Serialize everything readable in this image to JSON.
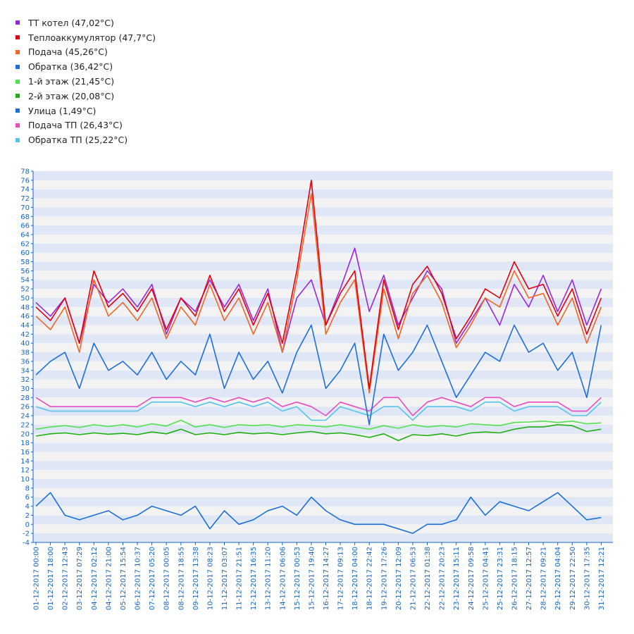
{
  "chart_data": {
    "type": "line",
    "ylim": [
      -4,
      78
    ],
    "y_ticks": [
      -4,
      -2,
      0,
      2,
      4,
      6,
      8,
      10,
      12,
      14,
      16,
      18,
      20,
      22,
      24,
      26,
      28,
      30,
      32,
      34,
      36,
      38,
      40,
      42,
      44,
      46,
      48,
      50,
      52,
      54,
      56,
      58,
      60,
      62,
      64,
      66,
      68,
      70,
      72,
      74,
      76,
      78
    ],
    "x_ticks": [
      "01-12-2017 00:00",
      "01-12-2017 18:00",
      "02-12-2017 12:43",
      "03-12-2017 07:29",
      "04-12-2017 02:12",
      "04-12-2017 21:00",
      "05-12-2017 15:54",
      "06-12-2017 10:37",
      "07-12-2017 05:20",
      "08-12-2017 00:05",
      "08-12-2017 18:55",
      "09-12-2017 13:38",
      "10-12-2017 08:23",
      "11-12-2017 03:07",
      "11-12-2017 21:51",
      "12-12-2017 16:35",
      "13-12-2017 11:20",
      "14-12-2017 06:06",
      "15-12-2017 00:53",
      "15-12-2017 19:40",
      "16-12-2017 14:27",
      "17-12-2017 09:13",
      "18-12-2017 04:00",
      "18-12-2017 22:42",
      "19-12-2017 17:26",
      "20-12-2017 12:09",
      "21-12-2017 06:53",
      "22-12-2017 01:38",
      "22-12-2017 20:23",
      "23-12-2017 15:11",
      "24-12-2017 09:58",
      "25-12-2017 04:41",
      "25-12-2017 23:31",
      "26-12-2017 18:15",
      "27-12-2017 12:57",
      "28-12-2017 09:21",
      "29-12-2017 04:04",
      "29-12-2017 22:50",
      "30-12-2017 17:35",
      "31-12-2017 12:21"
    ],
    "series_anchor_x": [
      0,
      1,
      2,
      3,
      4,
      5,
      6,
      7,
      8,
      9,
      10,
      11,
      12,
      13,
      14,
      15,
      16,
      17,
      18,
      19,
      20,
      21,
      22,
      23,
      24,
      25,
      26,
      27,
      28,
      29,
      30,
      31,
      32,
      33,
      34,
      35,
      36,
      37,
      38,
      39
    ],
    "series": [
      {
        "name": "ТТ котел",
        "color": "#9c27d6",
        "current": "47,02°C",
        "values": [
          49,
          46,
          50,
          40,
          53,
          49,
          52,
          48,
          53,
          42,
          50,
          47,
          54,
          48,
          53,
          45,
          52,
          38,
          50,
          54,
          44,
          52,
          61,
          47,
          55,
          44,
          50,
          56,
          52,
          40,
          45,
          50,
          44,
          53,
          48,
          55,
          47,
          54,
          44,
          52
        ]
      },
      {
        "name": "Теплоаккумулятор",
        "current": "47,7°C",
        "color": "#e0000f",
        "values": [
          48,
          45,
          50,
          40,
          56,
          48,
          51,
          47,
          52,
          43,
          50,
          46,
          55,
          47,
          52,
          44,
          51,
          40,
          56,
          76,
          44,
          51,
          56,
          30,
          54,
          43,
          53,
          57,
          51,
          41,
          46,
          52,
          50,
          58,
          52,
          53,
          46,
          52,
          42,
          50
        ]
      },
      {
        "name": "Подача",
        "current": "45,26°C",
        "color": "#f26522",
        "values": [
          46,
          43,
          48,
          38,
          54,
          46,
          49,
          45,
          50,
          41,
          48,
          44,
          53,
          45,
          50,
          42,
          49,
          38,
          54,
          73,
          42,
          49,
          54,
          29,
          52,
          41,
          51,
          55,
          49,
          39,
          44,
          50,
          48,
          56,
          50,
          51,
          44,
          50,
          40,
          48
        ]
      },
      {
        "name": "Обратка",
        "current": "36,42°C",
        "color": "#1e6fd9",
        "values": [
          33,
          36,
          38,
          30,
          40,
          34,
          36,
          33,
          38,
          32,
          36,
          33,
          42,
          30,
          38,
          32,
          36,
          29,
          38,
          44,
          30,
          34,
          40,
          22,
          42,
          34,
          38,
          44,
          36,
          28,
          33,
          38,
          36,
          44,
          38,
          40,
          34,
          38,
          28,
          44
        ]
      },
      {
        "name": "1-й этаж",
        "current": "21,45°C",
        "color": "#53e04f",
        "values": [
          21,
          21.5,
          21.8,
          21.4,
          22,
          21.6,
          22,
          21.5,
          22.2,
          21.7,
          23,
          21.5,
          22,
          21.4,
          22,
          21.8,
          22,
          21.5,
          22,
          21.8,
          21.5,
          22,
          21.5,
          21,
          21.8,
          21.2,
          22,
          21.5,
          21.8,
          21.5,
          22.2,
          22,
          21.8,
          22.5,
          22.6,
          22.8,
          22.5,
          22.8,
          22.2,
          22.4
        ]
      },
      {
        "name": "2-й этаж",
        "current": "20,08°C",
        "color": "#1faf10",
        "values": [
          19.5,
          20,
          20.2,
          19.8,
          20.2,
          19.9,
          20.1,
          19.8,
          20.4,
          20,
          21,
          19.8,
          20.2,
          19.8,
          20.3,
          20,
          20.2,
          19.8,
          20.2,
          20.5,
          20,
          20.2,
          19.8,
          19.2,
          20,
          18.5,
          19.8,
          19.6,
          20,
          19.5,
          20.2,
          20.4,
          20.2,
          21,
          21.5,
          21.5,
          22,
          21.8,
          20.5,
          21
        ]
      },
      {
        "name": "Улица",
        "current": "1,49°C",
        "color": "#1a6fd8",
        "values": [
          4,
          7,
          2,
          1,
          2,
          3,
          1,
          2,
          4,
          3,
          2,
          4,
          -1,
          3,
          0,
          1,
          3,
          4,
          2,
          6,
          3,
          1,
          0,
          0,
          0,
          -1,
          -2,
          0,
          0,
          1,
          6,
          2,
          5,
          4,
          3,
          5,
          7,
          4,
          1,
          1.5
        ]
      },
      {
        "name": "Подача ТП",
        "current": "26,43°C",
        "color": "#e84dc0",
        "values": [
          28,
          26,
          26,
          26,
          26,
          26,
          26,
          26,
          28,
          28,
          28,
          27,
          28,
          27,
          28,
          27,
          28,
          26,
          27,
          26,
          24,
          27,
          26,
          25,
          28,
          28,
          24,
          27,
          28,
          27,
          26,
          28,
          28,
          26,
          27,
          27,
          27,
          25,
          25,
          28
        ]
      },
      {
        "name": "Обратка ТП",
        "current": "25,22°C",
        "color": "#56c4ea",
        "values": [
          26,
          25,
          25,
          25,
          25,
          25,
          25,
          25,
          27,
          27,
          27,
          26,
          27,
          26,
          27,
          26,
          27,
          25,
          26,
          23,
          23,
          26,
          25,
          24,
          26,
          26,
          23,
          26,
          26,
          26,
          25,
          27,
          27,
          25,
          26,
          26,
          26,
          24,
          24,
          27
        ]
      }
    ]
  }
}
